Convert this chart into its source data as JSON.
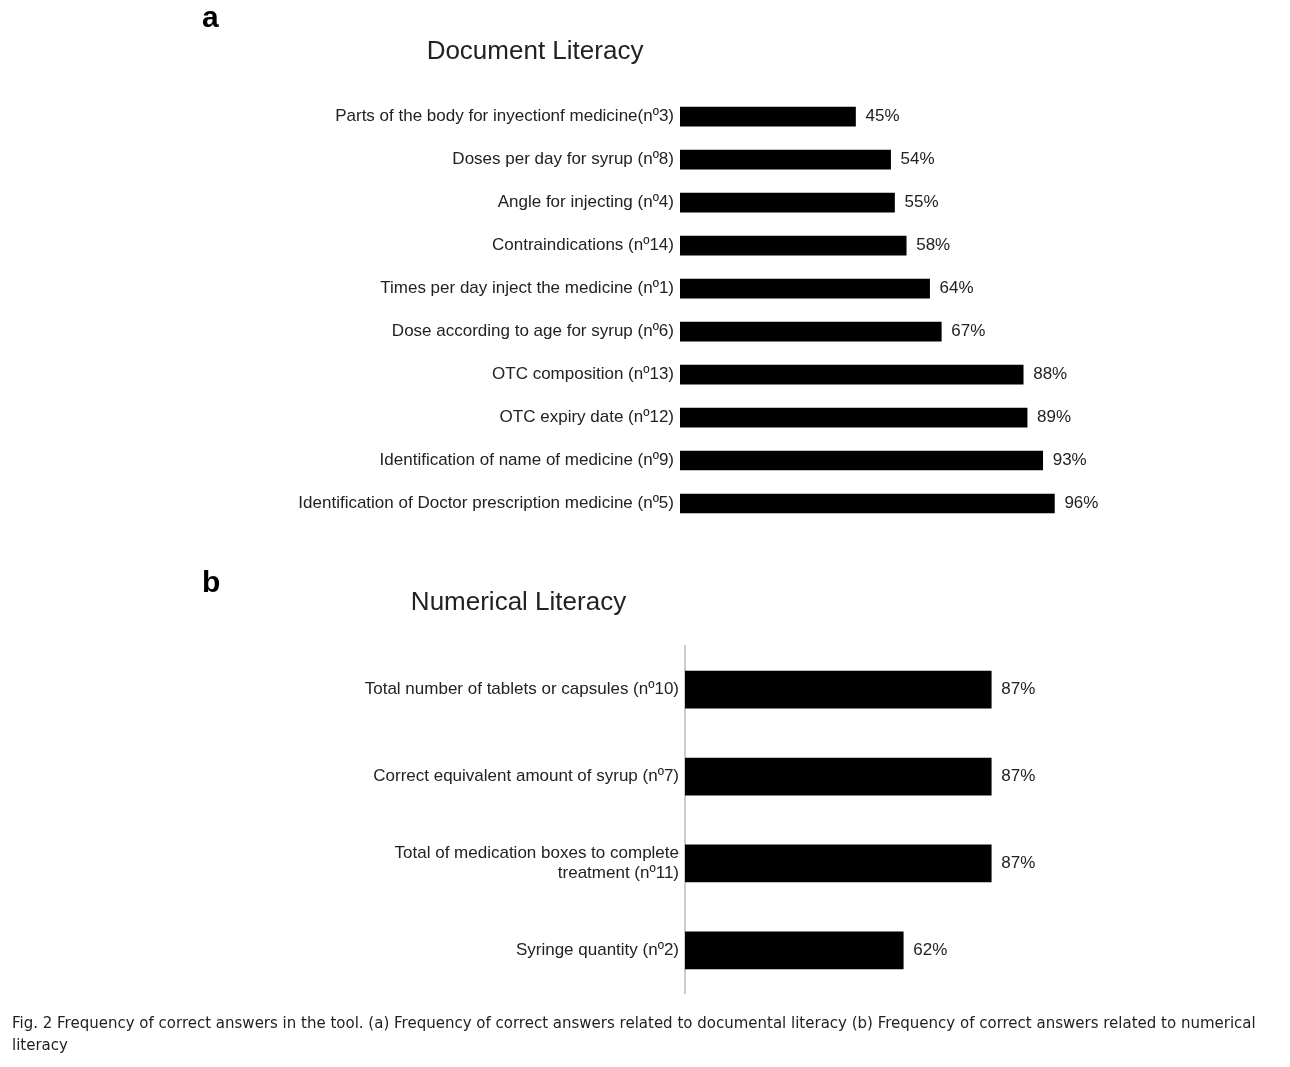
{
  "chart_data": [
    {
      "type": "bar",
      "orientation": "horizontal",
      "title": "Document Literacy",
      "annotations": [
        "a"
      ],
      "categories": [
        "Parts of the body for inyectionf medicine(nº3)",
        "Doses per day for syrup (nº8)",
        "Angle for injecting (nº4)",
        "Contraindications (nº14)",
        "Times per day inject the medicine (nº1)",
        "Dose according to age for syrup (nº6)",
        "OTC composition (nº13)",
        "OTC expiry date (nº12)",
        "Identification of name of medicine (nº9)",
        "Identification of Doctor prescription medicine (nº5)"
      ],
      "values": [
        45,
        54,
        55,
        58,
        64,
        67,
        88,
        89,
        93,
        96
      ],
      "value_labels": [
        "45%",
        "54%",
        "55%",
        "58%",
        "64%",
        "67%",
        "88%",
        "89%",
        "93%",
        "96%"
      ],
      "color": "#000000",
      "tick_labels": "y",
      "grid": false,
      "legend": false
    },
    {
      "type": "bar",
      "orientation": "horizontal",
      "title": "Numerical Literacy",
      "annotations": [
        "b",
        "Fig. 2 Frequency of correct answers in the tool. (a) Frequency of correct answers related to documental literacy (b) Frequency of correct answers related to numerical literacy"
      ],
      "categories": [
        "Total number of tablets or capsules (nº10)",
        "Correct equivalent amount of syrup (nº7)",
        "Total of medication boxes to complete treatment (nº11)",
        "Syringe quantity (nº2)"
      ],
      "values": [
        87,
        87,
        87,
        62
      ],
      "value_labels": [
        "87%",
        "87%",
        "87%",
        "62%"
      ],
      "color": "#000000",
      "tick_labels": "y",
      "grid": false,
      "legend": false
    }
  ]
}
